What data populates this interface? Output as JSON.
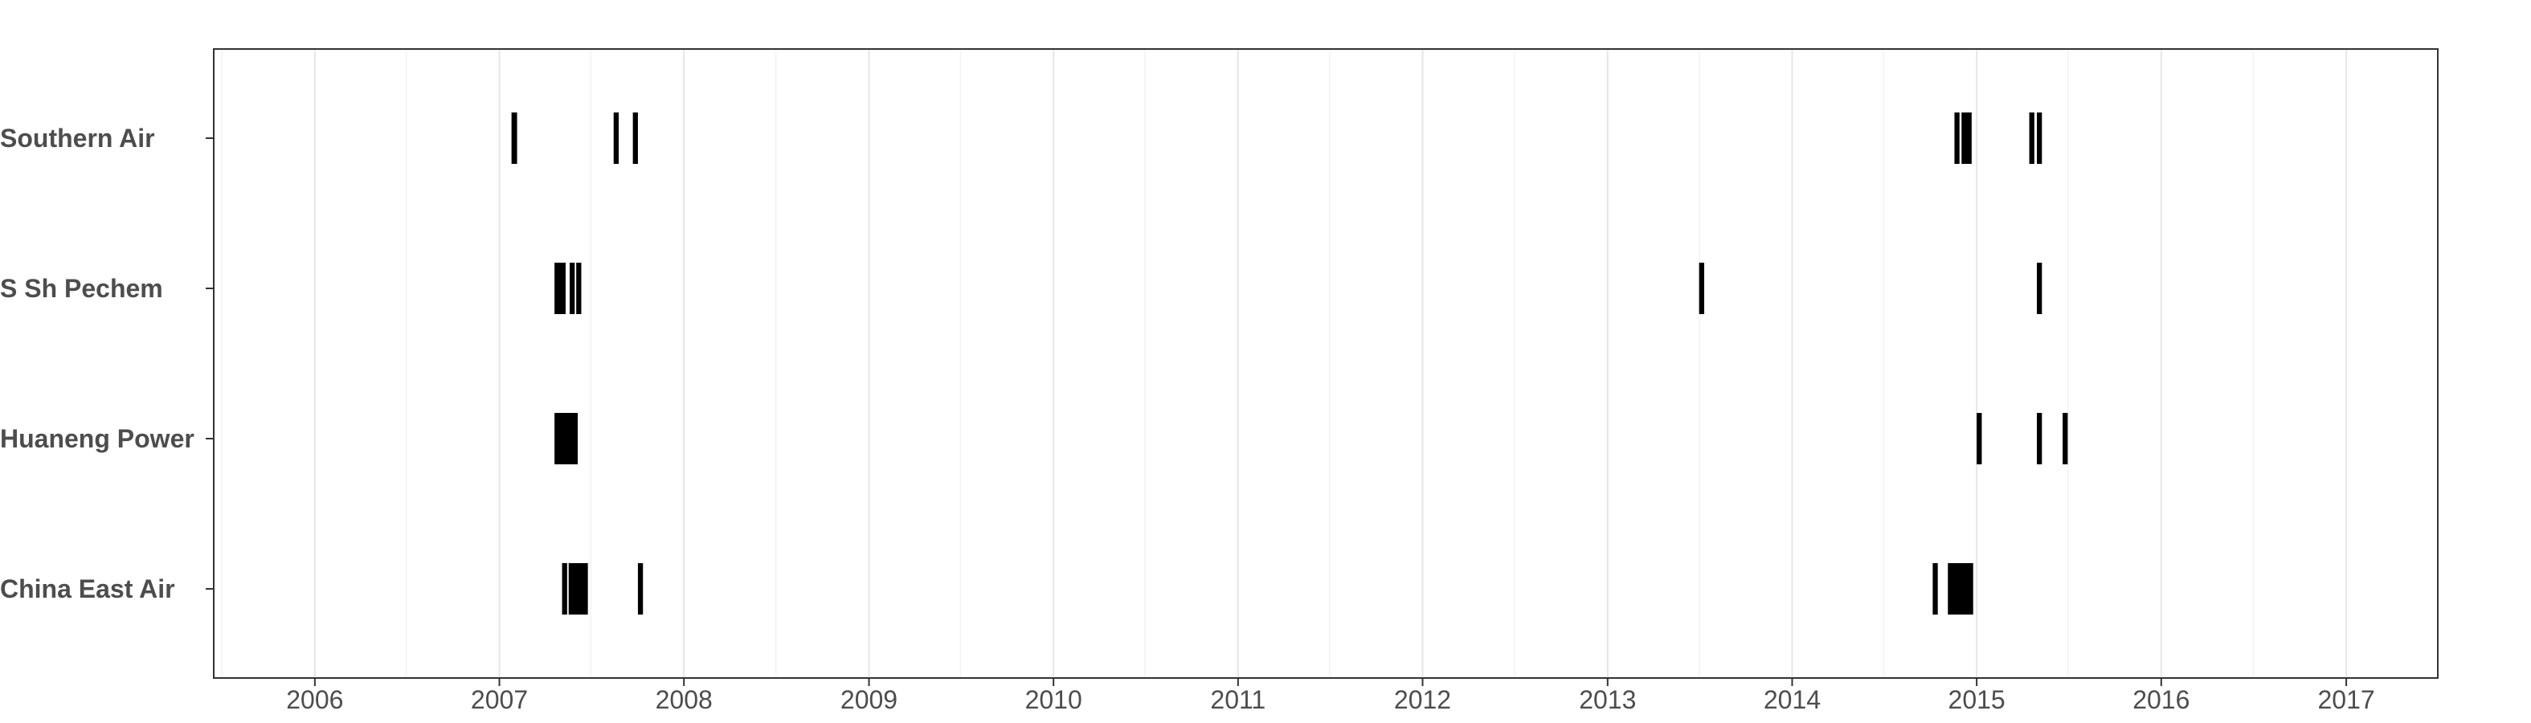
{
  "chart_data": {
    "type": "timeline",
    "title": "",
    "xlabel": "",
    "ylabel": "",
    "x_axis_type": "date",
    "xlim": [
      "2005-06-15",
      "2017-07-01"
    ],
    "x_ticks": [
      "2006",
      "2007",
      "2008",
      "2009",
      "2010",
      "2011",
      "2012",
      "2013",
      "2014",
      "2015",
      "2016",
      "2017"
    ],
    "grid": true,
    "legend": "none",
    "mark_color": "#000000",
    "grid_major_color": "#e6e6e6",
    "grid_minor_color": "#f2f2f2",
    "panel_border_color": "#333333",
    "categories": [
      "Southern Air",
      "S Sh Pechem",
      "Huaneng Power",
      "China East Air"
    ],
    "series": [
      {
        "category": "Southern Air",
        "intervals": [
          [
            "2007-01-25",
            "2007-02-05"
          ],
          [
            "2007-08-15",
            "2007-08-25"
          ],
          [
            "2007-09-22",
            "2007-10-02"
          ],
          [
            "2014-11-18",
            "2014-11-28"
          ],
          [
            "2014-12-02",
            "2014-12-22"
          ],
          [
            "2015-04-15",
            "2015-04-25"
          ],
          [
            "2015-04-30",
            "2015-05-10"
          ]
        ]
      },
      {
        "category": "S Sh Pechem",
        "intervals": [
          [
            "2007-04-20",
            "2007-05-12"
          ],
          [
            "2007-05-20",
            "2007-05-30"
          ],
          [
            "2007-06-02",
            "2007-06-12"
          ],
          [
            "2013-07-01",
            "2013-07-11"
          ],
          [
            "2015-04-30",
            "2015-05-10"
          ]
        ]
      },
      {
        "category": "Huaneng Power",
        "intervals": [
          [
            "2007-04-20",
            "2007-06-05"
          ],
          [
            "2015-01-01",
            "2015-01-11"
          ],
          [
            "2015-04-30",
            "2015-05-10"
          ],
          [
            "2015-06-20",
            "2015-06-30"
          ]
        ]
      },
      {
        "category": "China East Air",
        "intervals": [
          [
            "2007-05-05",
            "2007-05-15"
          ],
          [
            "2007-05-18",
            "2007-06-25"
          ],
          [
            "2007-10-02",
            "2007-10-12"
          ],
          [
            "2014-10-06",
            "2014-10-16"
          ],
          [
            "2014-11-05",
            "2014-12-25"
          ]
        ]
      }
    ]
  }
}
